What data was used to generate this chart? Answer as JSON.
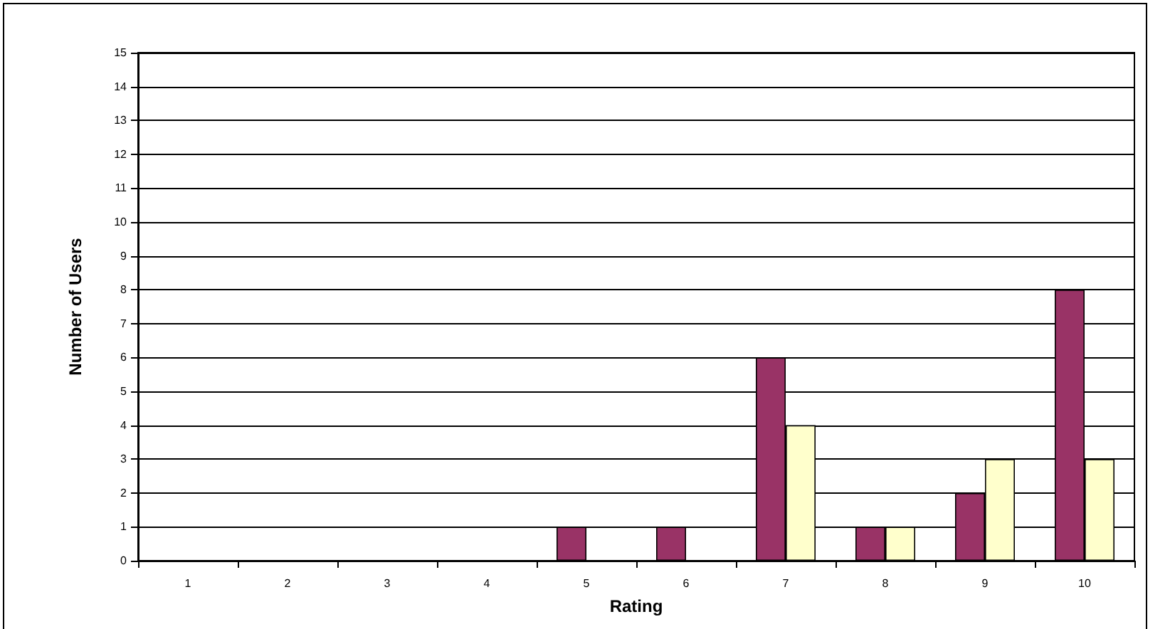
{
  "chart_data": {
    "type": "bar",
    "xlabel": "Rating",
    "ylabel": "Number of Users",
    "categories": [
      "1",
      "2",
      "3",
      "4",
      "5",
      "6",
      "7",
      "8",
      "9",
      "10"
    ],
    "series": [
      {
        "color": "#993366",
        "values": [
          0,
          0,
          0,
          0,
          1,
          1,
          6,
          1,
          2,
          8
        ]
      },
      {
        "color": "#ffffcc",
        "values": [
          0,
          0,
          0,
          0,
          0,
          0,
          4,
          1,
          3,
          3
        ]
      }
    ],
    "ylim": [
      0,
      15
    ],
    "yticks": [
      0,
      1,
      2,
      3,
      4,
      5,
      6,
      7,
      8,
      9,
      10,
      11,
      12,
      13,
      14,
      15
    ],
    "grid": "y"
  }
}
